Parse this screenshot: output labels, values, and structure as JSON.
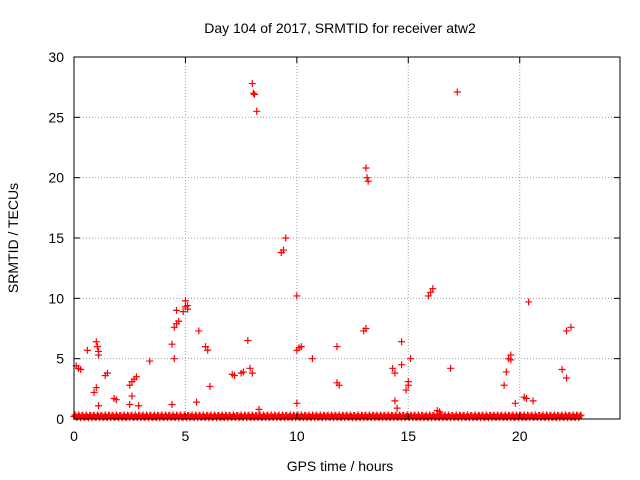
{
  "chart_data": {
    "type": "scatter",
    "title": "Day 104 of 2017, SRMTID for receiver atw2",
    "xlabel": "GPS time / hours",
    "ylabel": "SRMTID / TECUs",
    "xlim": [
      0,
      24.5
    ],
    "ylim": [
      0,
      30
    ],
    "xticks": [
      0,
      5,
      10,
      15,
      20
    ],
    "yticks": [
      0,
      5,
      10,
      15,
      20,
      25,
      30
    ],
    "grid": true,
    "legend": "none",
    "marker": "+",
    "colors": {
      "points": "#ff0000",
      "grid": "#a0a0a0",
      "axes": "#000000"
    },
    "series": [
      {
        "points": [
          [
            0.1,
            4.4
          ],
          [
            0.2,
            4.2
          ],
          [
            0.3,
            4.1
          ],
          [
            0.6,
            5.7
          ],
          [
            1.0,
            6.4
          ],
          [
            1.05,
            6.0
          ],
          [
            1.1,
            5.6
          ],
          [
            1.1,
            5.3
          ],
          [
            0.9,
            2.2
          ],
          [
            1.0,
            2.6
          ],
          [
            1.1,
            1.1
          ],
          [
            1.4,
            3.6
          ],
          [
            1.5,
            3.8
          ],
          [
            1.8,
            1.7
          ],
          [
            1.9,
            1.6
          ],
          [
            2.5,
            2.8
          ],
          [
            2.6,
            3.1
          ],
          [
            2.7,
            3.3
          ],
          [
            2.8,
            3.5
          ],
          [
            2.6,
            1.9
          ],
          [
            2.5,
            1.2
          ],
          [
            2.9,
            1.1
          ],
          [
            3.4,
            4.8
          ],
          [
            4.4,
            6.2
          ],
          [
            4.5,
            7.6
          ],
          [
            4.6,
            7.9
          ],
          [
            4.7,
            8.1
          ],
          [
            4.5,
            5.0
          ],
          [
            4.6,
            9.0
          ],
          [
            4.9,
            8.9
          ],
          [
            5.0,
            9.3
          ],
          [
            5.0,
            9.8
          ],
          [
            5.1,
            9.4
          ],
          [
            5.1,
            9.1
          ],
          [
            4.4,
            1.2
          ],
          [
            5.5,
            1.4
          ],
          [
            5.6,
            7.3
          ],
          [
            5.9,
            6.0
          ],
          [
            6.0,
            5.7
          ],
          [
            6.1,
            2.7
          ],
          [
            7.1,
            3.7
          ],
          [
            7.2,
            3.6
          ],
          [
            7.5,
            3.8
          ],
          [
            7.6,
            3.9
          ],
          [
            7.8,
            6.5
          ],
          [
            7.9,
            4.2
          ],
          [
            8.0,
            3.8
          ],
          [
            8.0,
            27.8
          ],
          [
            8.05,
            27.0
          ],
          [
            8.1,
            26.9
          ],
          [
            8.2,
            25.5
          ],
          [
            8.3,
            0.8
          ],
          [
            9.3,
            13.8
          ],
          [
            9.4,
            14.0
          ],
          [
            9.5,
            15.0
          ],
          [
            10.0,
            10.2
          ],
          [
            10.0,
            5.7
          ],
          [
            10.1,
            5.9
          ],
          [
            10.2,
            6.0
          ],
          [
            10.0,
            1.3
          ],
          [
            10.7,
            5.0
          ],
          [
            11.8,
            6.0
          ],
          [
            11.8,
            3.0
          ],
          [
            11.9,
            2.8
          ],
          [
            13.0,
            7.3
          ],
          [
            13.1,
            7.5
          ],
          [
            13.1,
            20.8
          ],
          [
            13.15,
            20.0
          ],
          [
            13.2,
            19.7
          ],
          [
            14.3,
            4.2
          ],
          [
            14.4,
            3.8
          ],
          [
            14.4,
            1.5
          ],
          [
            14.5,
            0.9
          ],
          [
            14.7,
            6.4
          ],
          [
            14.7,
            4.5
          ],
          [
            14.9,
            2.4
          ],
          [
            15.0,
            2.8
          ],
          [
            15.0,
            3.1
          ],
          [
            15.1,
            5.0
          ],
          [
            15.9,
            10.2
          ],
          [
            16.0,
            10.5
          ],
          [
            16.1,
            10.8
          ],
          [
            16.3,
            0.7
          ],
          [
            16.4,
            0.6
          ],
          [
            16.9,
            4.2
          ],
          [
            17.2,
            27.1
          ],
          [
            19.4,
            3.9
          ],
          [
            19.5,
            5.0
          ],
          [
            19.6,
            5.3
          ],
          [
            19.6,
            4.9
          ],
          [
            19.3,
            2.8
          ],
          [
            19.8,
            1.3
          ],
          [
            20.2,
            1.8
          ],
          [
            20.3,
            1.7
          ],
          [
            20.4,
            9.7
          ],
          [
            20.6,
            1.5
          ],
          [
            21.9,
            4.1
          ],
          [
            22.1,
            7.3
          ],
          [
            22.3,
            7.6
          ],
          [
            22.1,
            3.4
          ]
        ]
      }
    ],
    "baseline": {
      "y": 0.1,
      "note": "dense points near zero across 0–22.8 h"
    }
  }
}
